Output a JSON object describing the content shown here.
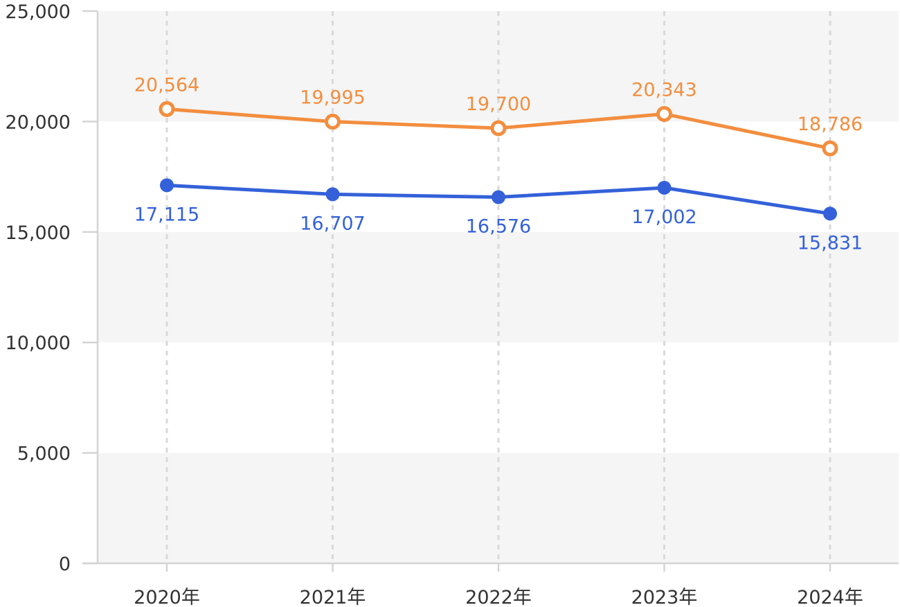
{
  "chart_data": {
    "type": "line",
    "title": "",
    "xlabel": "",
    "ylabel": "",
    "categories": [
      "2020年",
      "2021年",
      "2022年",
      "2023年",
      "2024年"
    ],
    "ylim": [
      0,
      25000
    ],
    "yticks": [
      0,
      5000,
      10000,
      15000,
      20000,
      25000
    ],
    "ytick_labels": [
      "0",
      "5,000",
      "10,000",
      "15,000",
      "20,000",
      "25,000"
    ],
    "grid": "alternating horizontal bands, dashed vertical lines",
    "legend": "none",
    "series": [
      {
        "values": [
          20564,
          19995,
          19700,
          20343,
          18786
        ],
        "labels": [
          "20,564",
          "19,995",
          "19,700",
          "20,343",
          "18,786"
        ],
        "color": "#F28E3F",
        "marker": "hollow-circle",
        "label_position": "above"
      },
      {
        "values": [
          17115,
          16707,
          16576,
          17002,
          15831
        ],
        "labels": [
          "17,115",
          "16,707",
          "16,576",
          "17,002",
          "15,831"
        ],
        "color": "#3461D9",
        "marker": "filled-circle",
        "label_position": "below"
      }
    ]
  }
}
